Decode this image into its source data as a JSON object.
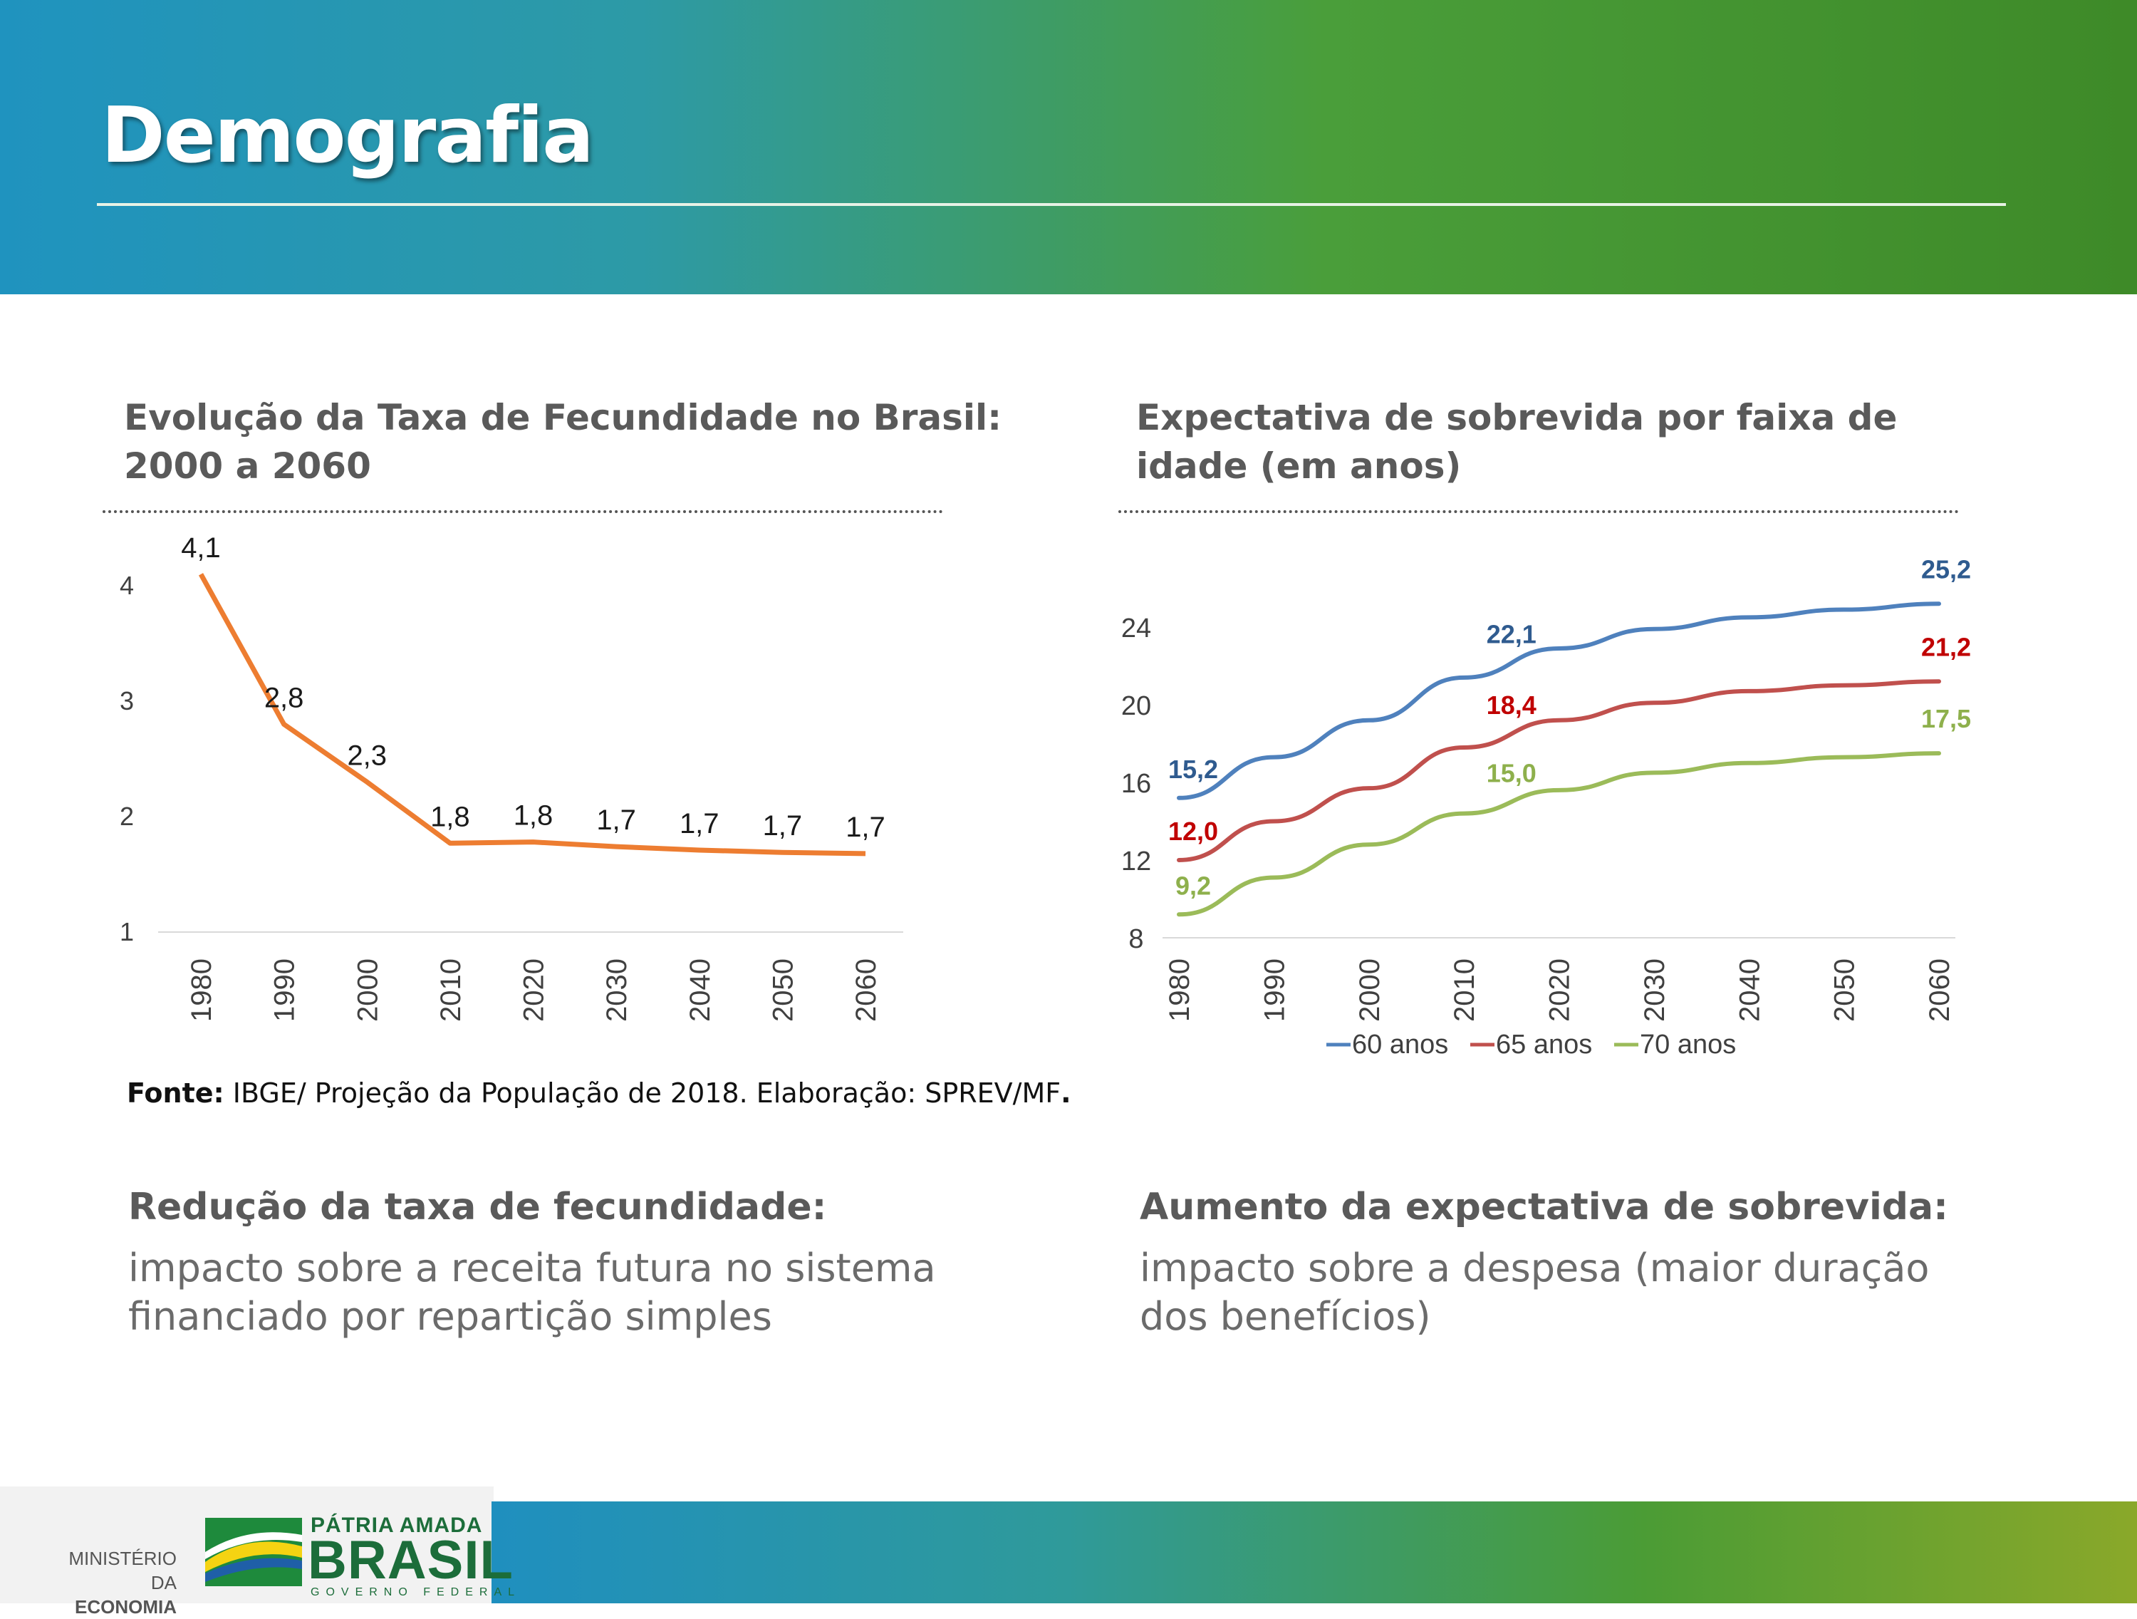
{
  "header": {
    "title": "Demografia"
  },
  "left": {
    "title_line1": "Evolução da Taxa de Fecundidade no Brasil:",
    "title_line2": "2000 a 2060"
  },
  "right": {
    "title_line1": "Expectativa de sobrevida por faixa de",
    "title_line2": "idade (em anos)"
  },
  "source": {
    "label": "Fonte:",
    "text": " IBGE/ Projeção da População de 2018. Elaboração: SPREV/MF",
    "end": "."
  },
  "summary_left": {
    "title": "Redução da taxa de fecundidade:",
    "line1": "impacto sobre  a receita futura no sistema",
    "line2": "financiado por repartição simples"
  },
  "summary_right": {
    "title": "Aumento da expectativa de sobrevida:",
    "line1": "impacto sobre a despesa (maior duração",
    "line2": "dos benefícios)"
  },
  "footer": {
    "ministry_line1": "MINISTÉRIO DA",
    "ministry_line2": "ECONOMIA",
    "logo_line1": "PÁTRIA AMADA",
    "logo_line2": "BRASIL",
    "logo_line3": "GOVERNO FEDERAL"
  },
  "colors": {
    "fert": "#ed7d31",
    "s60": "#4f81bd",
    "s65": "#c0504d",
    "s70": "#9bbb59",
    "s60_label": "#2f5b8f",
    "s65_label": "#c00000",
    "s70_label": "#8eb04c"
  },
  "chart_data": [
    {
      "type": "line",
      "title": "Evolução da Taxa de Fecundidade no Brasil: 2000 a 2060",
      "categories": [
        "1980",
        "1990",
        "2000",
        "2010",
        "2020",
        "2030",
        "2040",
        "2050",
        "2060"
      ],
      "series": [
        {
          "values": [
            4.1,
            2.8,
            2.3,
            1.77,
            1.78,
            1.74,
            1.71,
            1.69,
            1.68
          ],
          "labels": [
            "4,1",
            "2,8",
            "2,3",
            "1,8",
            "1,8",
            "1,7",
            "1,7",
            "1,7",
            "1,7"
          ]
        }
      ],
      "yticks": [
        "1",
        "2",
        "3",
        "4"
      ],
      "ylim": [
        1,
        4.2
      ],
      "grid": false
    },
    {
      "type": "line",
      "title": "Expectativa de sobrevida por faixa de idade (em anos)",
      "categories": [
        "1980",
        "1990",
        "2000",
        "2010",
        "2020",
        "2030",
        "2040",
        "2050",
        "2060"
      ],
      "yticks": [
        "8",
        "12",
        "16",
        "20",
        "24"
      ],
      "ylim": [
        8,
        26
      ],
      "legend_position": "bottom",
      "series": [
        {
          "name": "60 anos",
          "values": [
            15.2,
            17.3,
            19.2,
            21.4,
            22.9,
            23.9,
            24.5,
            24.9,
            25.2
          ]
        },
        {
          "name": "65 anos",
          "values": [
            12.0,
            14.0,
            15.7,
            17.8,
            19.2,
            20.1,
            20.7,
            21.0,
            21.2
          ]
        },
        {
          "name": "70 anos",
          "values": [
            9.2,
            11.1,
            12.8,
            14.4,
            15.6,
            16.5,
            17.0,
            17.3,
            17.5
          ]
        }
      ],
      "point_labels": [
        {
          "series": 0,
          "text": "15,2"
        },
        {
          "series": 0,
          "text": "22,1"
        },
        {
          "series": 0,
          "text": "25,2"
        },
        {
          "series": 1,
          "text": "12,0"
        },
        {
          "series": 1,
          "text": "18,4"
        },
        {
          "series": 1,
          "text": "21,2"
        },
        {
          "series": 2,
          "text": "9,2"
        },
        {
          "series": 2,
          "text": "15,0"
        },
        {
          "series": 2,
          "text": "17,5"
        }
      ]
    }
  ]
}
